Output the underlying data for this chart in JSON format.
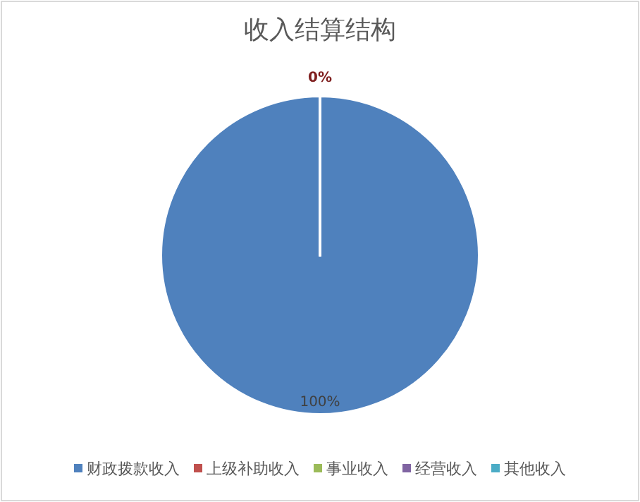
{
  "chart_data": {
    "type": "pie",
    "title": "收入结算结构",
    "categories": [
      "财政拨款收入",
      "上级补助收入",
      "事业收入",
      "经营收入",
      "其他收入"
    ],
    "values": [
      100,
      0,
      0,
      0,
      0
    ],
    "colors": [
      "#4f81bd",
      "#c0504d",
      "#9bbb59",
      "#8064a2",
      "#4bacc6"
    ],
    "value_labels": [
      "100%",
      "0%",
      null,
      null,
      null
    ],
    "legend": "bottom"
  }
}
